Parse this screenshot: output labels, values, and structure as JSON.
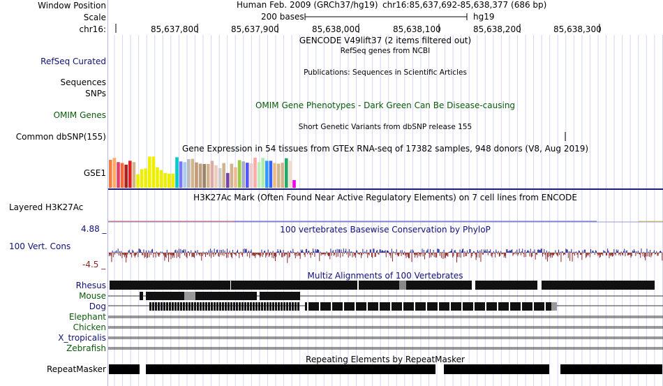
{
  "labels": {
    "window_position": "Window Position",
    "scale": "Scale",
    "chrom": "chr16:",
    "refseq": "RefSeq Curated",
    "sequences": "Sequences",
    "snps": "SNPs",
    "omim": "OMIM Genes",
    "dbsnp": "Common dbSNP(155)",
    "gse1": "GSE1",
    "h3k27ac": "Layered H3K27Ac",
    "cons": "100 Vert. Cons",
    "cons_max": "4.88 _",
    "cons_min": "-4.5 _",
    "species": [
      "Rhesus",
      "Mouse",
      "Dog",
      "Elephant",
      "Chicken",
      "X_tropicalis",
      "Zebrafish"
    ],
    "repeatmasker": "RepeatMasker"
  },
  "header": {
    "assembly": "Human Feb. 2009 (GRCh37/hg19)",
    "position": "chr16:85,637,692-85,638,377 (686 bp)",
    "scale_text": "200 bases",
    "db": "hg19",
    "ruler_ticks": [
      "85,637,800",
      "85,637,900",
      "85,638,000",
      "85,638,100",
      "85,638,200",
      "85,638,300"
    ]
  },
  "tracks": {
    "gencode": "GENCODE V49lift37 (2 items filtered out)",
    "refseq": "RefSeq genes from NCBI",
    "publications": "Publications: Sequences in Scientific Articles",
    "omim": "OMIM Gene Phenotypes - Dark Green Can Be Disease-causing",
    "dbsnp": "Short Genetic Variants from dbSNP release 155",
    "gtex": "Gene Expression in 54 tissues from GTEx RNA-seq of 17382 samples, 948 donors (V8, Aug 2019)",
    "h3k27ac": "H3K27Ac Mark (Often Found Near Active Regulatory Elements) on 7 cell lines from ENCODE",
    "conservation": "100 vertebrates Basewise Conservation by PhyloP",
    "multiz": "Multiz Alignments of 100 Vertebrates",
    "repeatmasker": "Repeating Elements by RepeatMasker"
  },
  "colors": {
    "label_navy": "#101078",
    "label_green": "#0a5a0a",
    "grid": "#d6d6f5",
    "cons_pos": "#23238c",
    "cons_neg": "#8c2323",
    "gtex_divider": "#1c1c7a"
  },
  "gtex_bars": [
    {
      "color": "#f08040",
      "level": 0.87
    },
    {
      "color": "#ffaa66",
      "level": 0.93
    },
    {
      "color": "#e04070",
      "level": 0.8
    },
    {
      "color": "#ff6633",
      "level": 0.77
    },
    {
      "color": "#b02020",
      "level": 0.72
    },
    {
      "color": "#e02020",
      "level": 0.84
    },
    {
      "color": "#d2b48c",
      "level": 0.8
    },
    {
      "color": "#eeee00",
      "level": 0.42
    },
    {
      "color": "#eeee00",
      "level": 0.58
    },
    {
      "color": "#eeee00",
      "level": 0.6
    },
    {
      "color": "#eeee00",
      "level": 0.97
    },
    {
      "color": "#eeee00",
      "level": 0.97
    },
    {
      "color": "#eeee00",
      "level": 0.64
    },
    {
      "color": "#eeee00",
      "level": 0.55
    },
    {
      "color": "#eeee00",
      "level": 0.46
    },
    {
      "color": "#eeee00",
      "level": 0.44
    },
    {
      "color": "#eeee00",
      "level": 0.44
    },
    {
      "color": "#00cccc",
      "level": 0.95
    },
    {
      "color": "#7777ff",
      "level": 0.82
    },
    {
      "color": "#aaccee",
      "level": 0.8
    },
    {
      "color": "#bbbbbb",
      "level": 0.89
    },
    {
      "color": "#d2b48c",
      "level": 0.9
    },
    {
      "color": "#c49a7a",
      "level": 0.79
    },
    {
      "color": "#bca080",
      "level": 0.75
    },
    {
      "color": "#a0826a",
      "level": 0.74
    },
    {
      "color": "#d2b48c",
      "level": 0.74
    },
    {
      "color": "#ddaaaa",
      "level": 0.84
    },
    {
      "color": "#eeccbb",
      "level": 0.7
    },
    {
      "color": "#cccccc",
      "level": 0.61
    },
    {
      "color": "#d2b48c",
      "level": 0.77
    },
    {
      "color": "#7744aa",
      "level": 0.46
    },
    {
      "color": "#d2b48c",
      "level": 0.75
    },
    {
      "color": "#eebb99",
      "level": 0.64
    },
    {
      "color": "#99cc44",
      "level": 0.86
    },
    {
      "color": "#aaaacc",
      "level": 0.82
    },
    {
      "color": "#5555ff",
      "level": 0.78
    },
    {
      "color": "#eecccc",
      "level": 0.76
    },
    {
      "color": "#ffaaaa",
      "level": 0.94
    },
    {
      "color": "#bbeebb",
      "level": 0.8
    },
    {
      "color": "#aaeeaa",
      "level": 0.93
    },
    {
      "color": "#3399ff",
      "level": 0.84
    },
    {
      "color": "#3366ff",
      "level": 0.84
    },
    {
      "color": "#eebb88",
      "level": 0.77
    },
    {
      "color": "#d2b48c",
      "level": 0.75
    },
    {
      "color": "#d2b48c",
      "level": 0.78
    },
    {
      "color": "#22aa66",
      "level": 0.92
    },
    {
      "color": "#eeddcc",
      "level": 0.84
    },
    {
      "color": "#ee00ee",
      "level": 0.24
    }
  ]
}
